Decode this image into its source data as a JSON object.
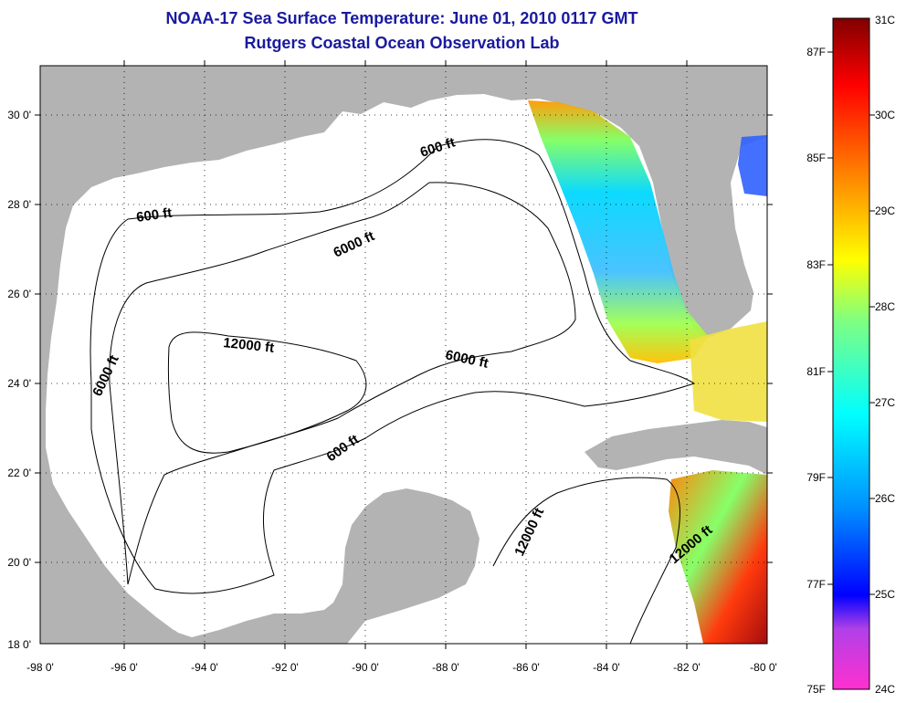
{
  "title": "NOAA-17 Sea Surface Temperature:  June 01, 2010 0117 GMT",
  "subtitle": "Rutgers Coastal Ocean Observation Lab",
  "colors": {
    "title": "#1a1aa0",
    "land": "#b3b3b3",
    "no_data": "#ffffff"
  },
  "map": {
    "lon_ticks": [
      "-98 0'",
      "-96 0'",
      "-94 0'",
      "-92 0'",
      "-90 0'",
      "-88 0'",
      "-86 0'",
      "-84 0'",
      "-82 0'",
      "-80 0'"
    ],
    "lat_ticks": [
      "18 0'",
      "20 0'",
      "22 0'",
      "24 0'",
      "26 0'",
      "28 0'",
      "30 0'"
    ],
    "lon_range": [
      -98,
      -80
    ],
    "lat_range": [
      18,
      31
    ],
    "grid": "dotted",
    "contour_labels": [
      "600 ft",
      "600 ft",
      "6000 ft",
      "12000 ft",
      "6000 ft",
      "6000 ft",
      "600 ft",
      "12000 ft",
      "12000 ft"
    ]
  },
  "colorbar": {
    "fahrenheit_labels": [
      "87F",
      "85F",
      "83F",
      "81F",
      "79F",
      "77F",
      "75F"
    ],
    "celsius_labels": [
      "31C",
      "30C",
      "29C",
      "28C",
      "27C",
      "26C",
      "25C",
      "24C"
    ],
    "range_c": [
      24,
      31
    ]
  }
}
